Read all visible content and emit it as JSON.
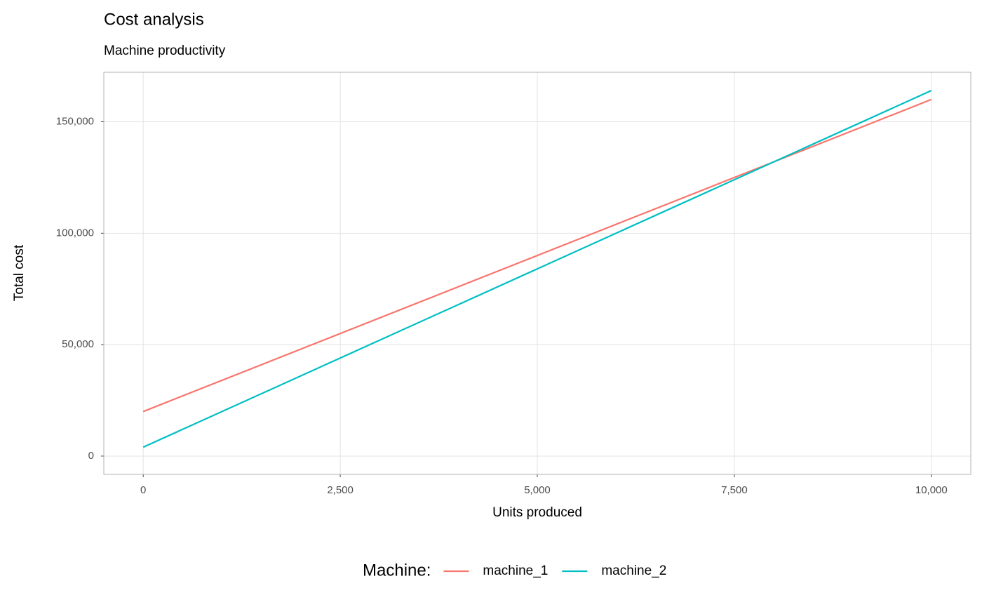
{
  "chart_data": {
    "type": "line",
    "title": "Cost analysis",
    "subtitle": "Machine productivity",
    "x_label": "Units produced",
    "y_label": "Total cost",
    "legend_title": "Machine:",
    "legend": "bottom",
    "grid": true,
    "x": [
      0,
      10000
    ],
    "series": [
      {
        "name": "machine_1",
        "color": "#F8766D",
        "values": [
          20000,
          160000
        ]
      },
      {
        "name": "machine_2",
        "color": "#00BFC4",
        "values": [
          4000,
          164000
        ]
      }
    ],
    "xlim": [
      -500,
      10500
    ],
    "xticks": [
      0,
      {
        "value": 2500,
        "label": "2,500"
      },
      {
        "value": 5000,
        "label": "5,000"
      },
      {
        "value": 7500,
        "label": "7,500"
      },
      {
        "value": 10000,
        "label": "10,000"
      }
    ],
    "ylim": [
      -8200,
      172200
    ],
    "yticks": [
      0,
      {
        "value": 50000,
        "label": "50,000"
      },
      {
        "value": 100000,
        "label": "100,000"
      },
      {
        "value": 150000,
        "label": "150,000"
      }
    ]
  }
}
